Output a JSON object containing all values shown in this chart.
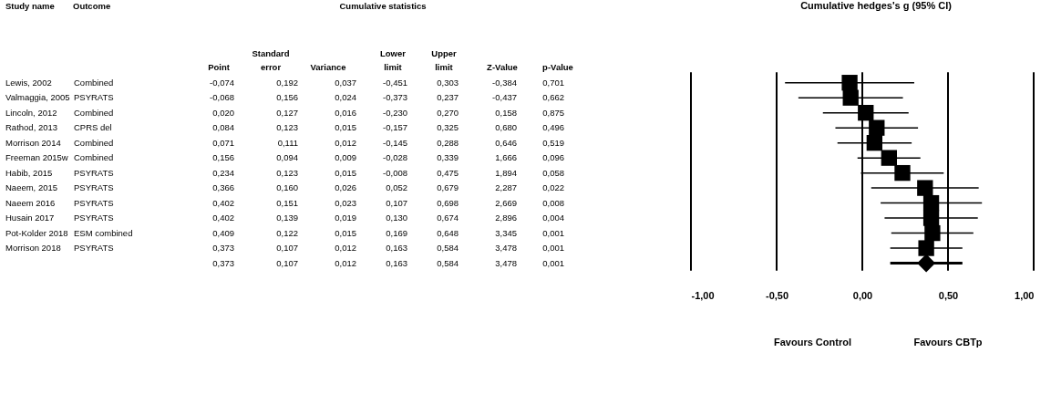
{
  "chart_data": [
    {
      "type": "other",
      "title": "Cumulative statistics",
      "categories": [
        "Study name",
        "Outcome",
        "Point",
        "Standard error",
        "Variance",
        "Lower limit",
        "Upper limit",
        "Z-Value",
        "p-Value"
      ],
      "cell_labels": [
        [
          "Lewis, 2002",
          "Combined",
          "-0,074",
          "0,192",
          "0,037",
          "-0,451",
          "0,303",
          "-0,384",
          "0,701"
        ],
        [
          "Valmaggia, 2005",
          "PSYRATS",
          "-0,068",
          "0,156",
          "0,024",
          "-0,373",
          "0,237",
          "-0,437",
          "0,662"
        ],
        [
          "Lincoln, 2012",
          "Combined",
          "0,020",
          "0,127",
          "0,016",
          "-0,230",
          "0,270",
          "0,158",
          "0,875"
        ],
        [
          "Rathod, 2013",
          "CPRS del",
          "0,084",
          "0,123",
          "0,015",
          "-0,157",
          "0,325",
          "0,680",
          "0,496"
        ],
        [
          "Morrison 2014",
          "Combined",
          "0,071",
          "0,111",
          "0,012",
          "-0,145",
          "0,288",
          "0,646",
          "0,519"
        ],
        [
          "Freeman 2015w",
          "Combined",
          "0,156",
          "0,094",
          "0,009",
          "-0,028",
          "0,339",
          "1,666",
          "0,096"
        ],
        [
          "Habib, 2015",
          "PSYRATS",
          "0,234",
          "0,123",
          "0,015",
          "-0,008",
          "0,475",
          "1,894",
          "0,058"
        ],
        [
          "Naeem, 2015",
          "PSYRATS",
          "0,366",
          "0,160",
          "0,026",
          "0,052",
          "0,679",
          "2,287",
          "0,022"
        ],
        [
          "Naeem 2016",
          "PSYRATS",
          "0,402",
          "0,151",
          "0,023",
          "0,107",
          "0,698",
          "2,669",
          "0,008"
        ],
        [
          "Husain 2017",
          "PSYRATS",
          "0,402",
          "0,139",
          "0,019",
          "0,130",
          "0,674",
          "2,896",
          "0,004"
        ],
        [
          "Pot-Kolder 2018",
          "ESM combined",
          "0,409",
          "0,122",
          "0,015",
          "0,169",
          "0,648",
          "3,345",
          "0,001"
        ],
        [
          "Morrison 2018",
          "PSYRATS",
          "0,373",
          "0,107",
          "0,012",
          "0,163",
          "0,584",
          "3,478",
          "0,001"
        ],
        [
          null,
          null,
          "0,373",
          "0,107",
          "0,012",
          "0,163",
          "0,584",
          "3,478",
          "0,001"
        ]
      ]
    },
    {
      "type": "scatter",
      "title": "Cumulative hedges's g (95% CI)",
      "orientation": "horizontal",
      "categories": [
        null,
        null,
        null,
        null,
        null,
        null,
        null,
        null,
        null,
        null,
        null,
        null,
        null
      ],
      "series": [
        {
          "color": "#000000",
          "marker": "square",
          "values": [
            -0.074,
            -0.068,
            0.02,
            0.084,
            0.071,
            0.156,
            0.234,
            0.366,
            0.402,
            0.402,
            0.409,
            0.373,
            null
          ],
          "errors": [
            [
              -0.451,
              0.303
            ],
            [
              -0.373,
              0.237
            ],
            [
              -0.23,
              0.27
            ],
            [
              -0.157,
              0.325
            ],
            [
              -0.145,
              0.288
            ],
            [
              -0.028,
              0.339
            ],
            [
              -0.008,
              0.475
            ],
            [
              0.052,
              0.679
            ],
            [
              0.107,
              0.698
            ],
            [
              0.13,
              0.674
            ],
            [
              0.169,
              0.648
            ],
            [
              0.163,
              0.584
            ],
            null
          ]
        },
        {
          "color": "#000000",
          "marker": "diamond",
          "values": [
            null,
            null,
            null,
            null,
            null,
            null,
            null,
            null,
            null,
            null,
            null,
            null,
            0.373
          ],
          "errors": [
            null,
            null,
            null,
            null,
            null,
            null,
            null,
            null,
            null,
            null,
            null,
            null,
            [
              0.163,
              0.584
            ]
          ]
        }
      ],
      "xlim": [
        -1,
        1
      ],
      "xticks": [
        {
          "value": -1,
          "label": "-1,00"
        },
        {
          "value": -0.5,
          "label": "-0,50"
        },
        {
          "value": 0,
          "label": "0,00"
        },
        {
          "value": 0.5,
          "label": "0,50"
        },
        {
          "value": 1,
          "label": "1,00"
        }
      ],
      "grid": "x",
      "tick_labels": "x",
      "annotations": [
        "Favours Control",
        "Favours CBTp"
      ]
    }
  ]
}
